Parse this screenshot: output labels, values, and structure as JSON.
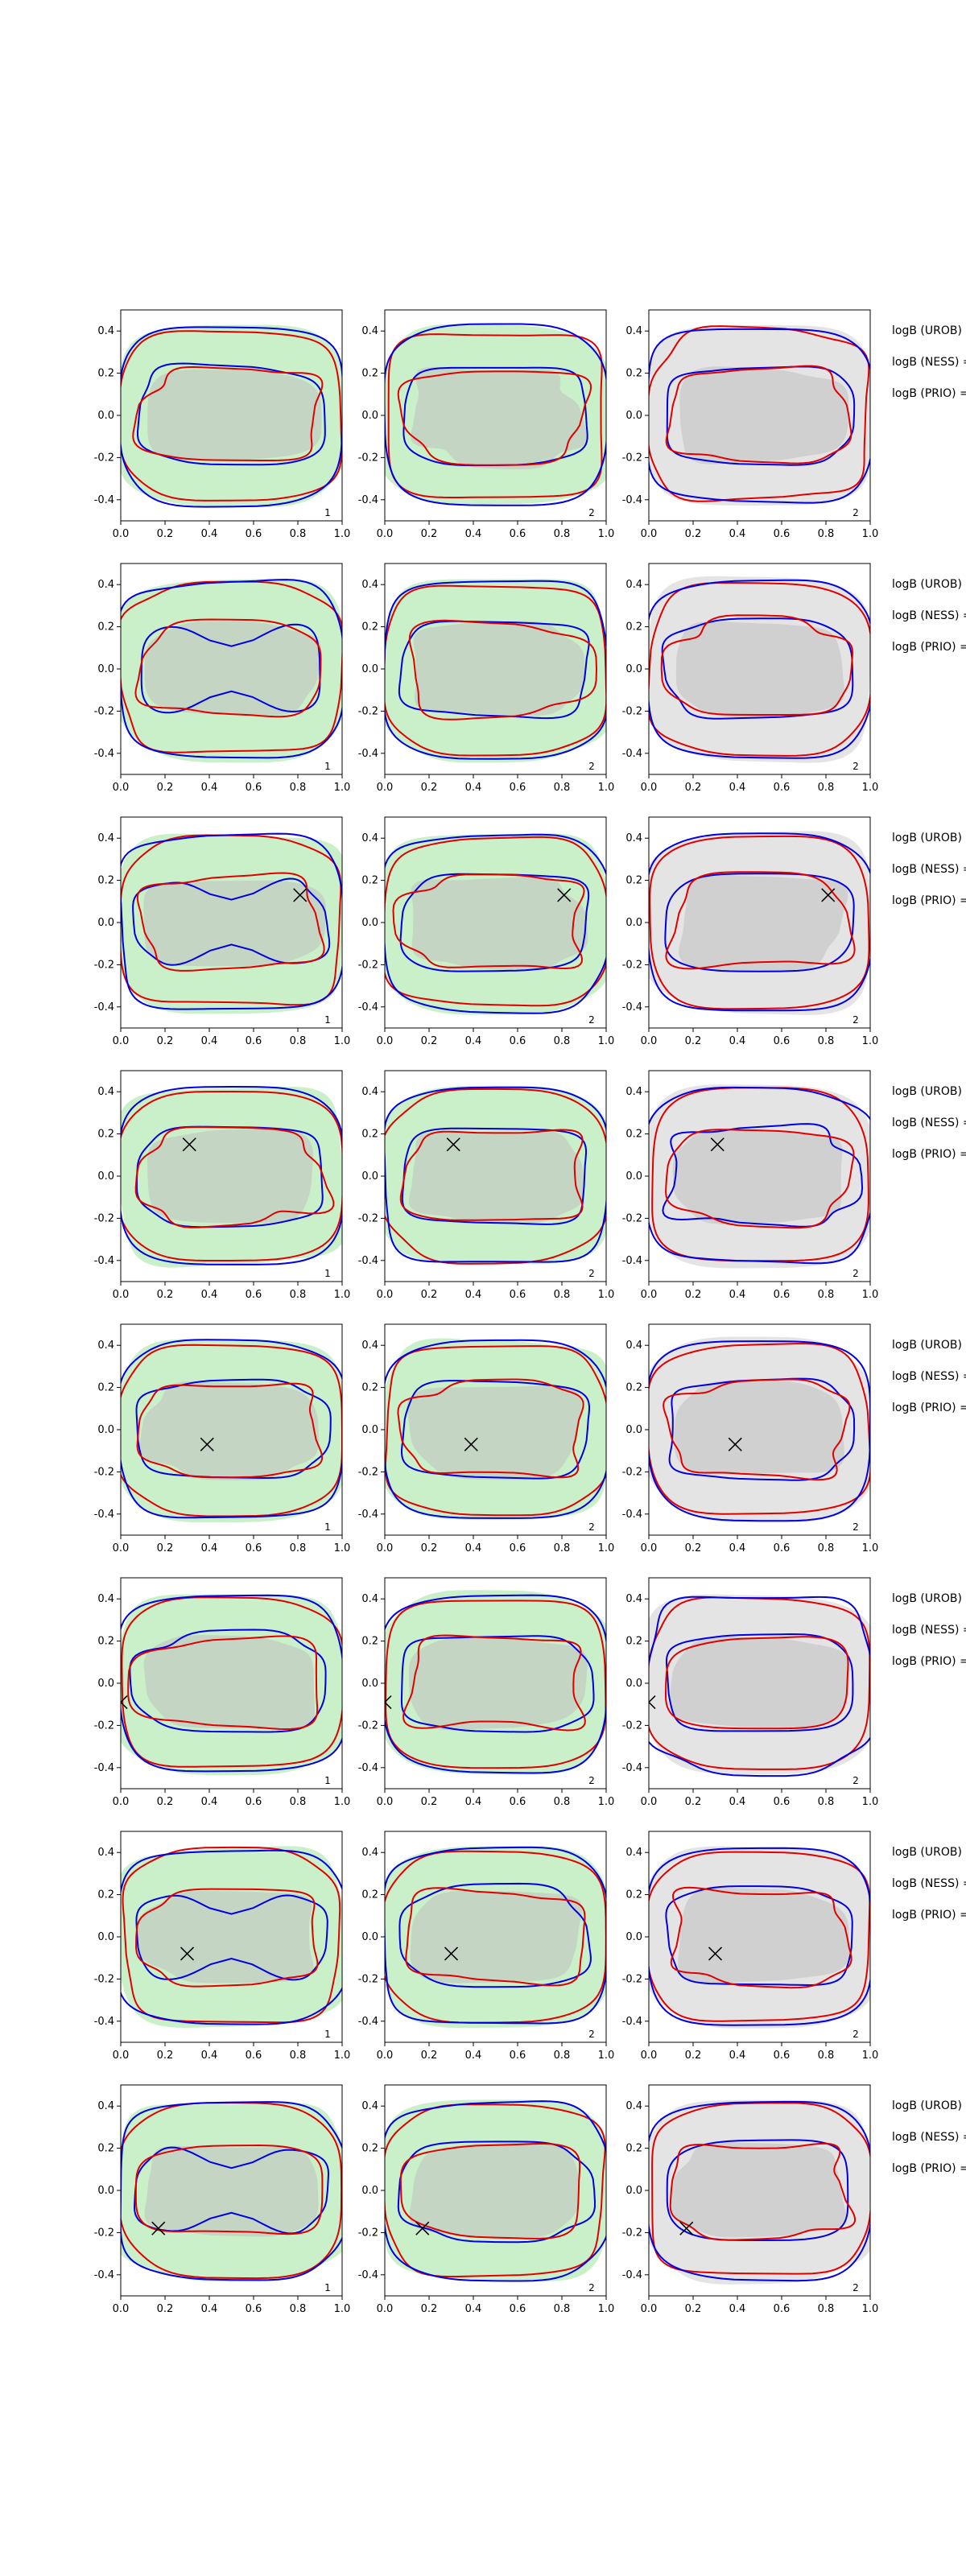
{
  "colors": {
    "green_fill": "#c9f0c9",
    "grey_fill": "#e4e4e4",
    "dark_fill": "#bfbfbf",
    "outer_red": "#e00000",
    "inner_blue": "#0000e0",
    "marker": "#000000"
  },
  "chart_data": {
    "type": "contour",
    "layout": {
      "rows": 8,
      "cols": 3
    },
    "xlim": [
      0.0,
      1.0
    ],
    "ylim": [
      -0.5,
      0.5
    ],
    "xticks": [
      "0.0",
      "0.2",
      "0.4",
      "0.6",
      "0.8",
      "1.0"
    ],
    "yticks": [
      "0.4",
      "0.2",
      "0.0",
      "-0.2",
      "-0.4"
    ],
    "grid": false,
    "column_panel_labels": [
      "1",
      "2",
      "2"
    ],
    "column_backgrounds": [
      "green",
      "green",
      "grey"
    ],
    "row_side_labels": [
      "logB (UROB) =",
      "logB (NESS) =",
      "logB (PRIO) ="
    ],
    "markers": [
      null,
      null,
      {
        "x": 0.81,
        "y": 0.13
      },
      {
        "x": 0.31,
        "y": 0.15
      },
      {
        "x": 0.39,
        "y": -0.07
      },
      {
        "x": 0.0,
        "y": -0.09
      },
      {
        "x": 0.3,
        "y": -0.08
      },
      {
        "x": 0.17,
        "y": -0.18
      }
    ]
  }
}
